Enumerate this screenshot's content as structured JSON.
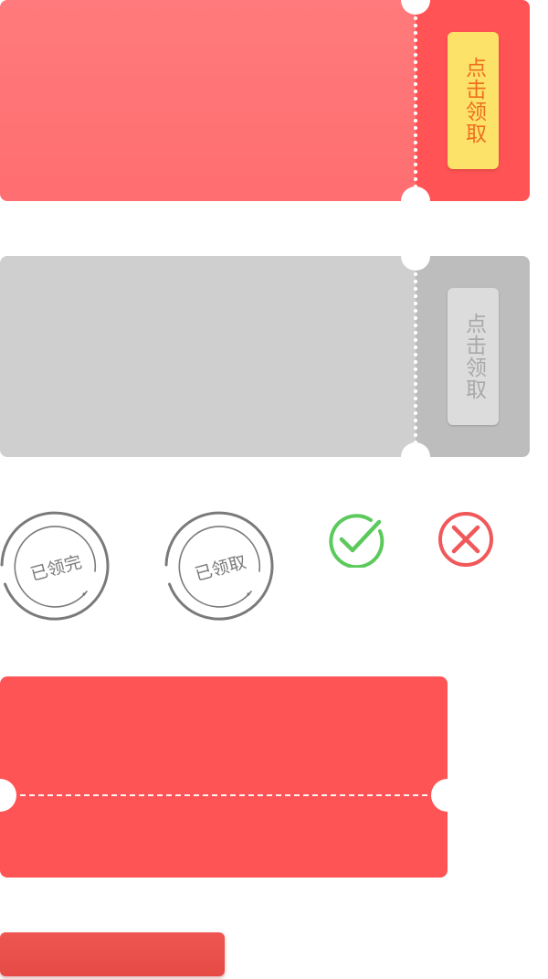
{
  "coupon_active": {
    "claim_label": "点击领取",
    "colors": {
      "body": "#ff7a7c",
      "stub": "#ff5355",
      "button": "#fde26a",
      "button_text": "#ee6f1e"
    }
  },
  "coupon_disabled": {
    "claim_label": "点击领取",
    "colors": {
      "body": "#cfcfcf",
      "stub": "#bdbdbd",
      "button": "#dcdcdc",
      "button_text": "#a9a9a9"
    }
  },
  "stamps": {
    "finished": {
      "label": "已领完",
      "color": "#7a7a7a"
    },
    "claimed": {
      "label": "已领取",
      "color": "#7a7a7a"
    }
  },
  "status_icons": {
    "success": {
      "icon": "check-circle-icon",
      "color": "#5cc95c"
    },
    "error": {
      "icon": "close-circle-icon",
      "color": "#f0585a"
    }
  },
  "coupon_card": {
    "color": "#ff5455"
  },
  "red_button": {
    "color": "#e84c48"
  }
}
